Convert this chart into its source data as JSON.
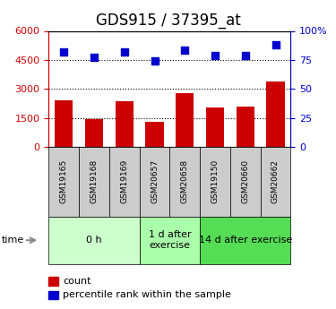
{
  "title": "GDS915 / 37395_at",
  "samples": [
    "GSM19165",
    "GSM19168",
    "GSM19169",
    "GSM20657",
    "GSM20658",
    "GSM19150",
    "GSM20660",
    "GSM20662"
  ],
  "counts": [
    2400,
    1450,
    2380,
    1300,
    2800,
    2050,
    2100,
    3400
  ],
  "percentiles": [
    82,
    77,
    82,
    74,
    83,
    79,
    79,
    88
  ],
  "ylim_left": [
    0,
    6000
  ],
  "ylim_right": [
    0,
    100
  ],
  "yticks_left": [
    0,
    1500,
    3000,
    4500,
    6000
  ],
  "yticks_right": [
    0,
    25,
    50,
    75,
    100
  ],
  "bar_color": "#cc0000",
  "dot_color": "#0000cc",
  "groups": [
    {
      "label": "0 h",
      "start": 0,
      "end": 3,
      "color": "#ccffcc"
    },
    {
      "label": "1 d after\nexercise",
      "start": 3,
      "end": 5,
      "color": "#aaffaa"
    },
    {
      "label": "14 d after exercise",
      "start": 5,
      "end": 8,
      "color": "#55dd55"
    }
  ],
  "time_label": "time",
  "legend_count": "count",
  "legend_percentile": "percentile rank within the sample",
  "tick_color_left": "#cc0000",
  "tick_color_right": "#0000cc",
  "title_fontsize": 12,
  "axis_fontsize": 8,
  "group_label_fontsize": 8
}
